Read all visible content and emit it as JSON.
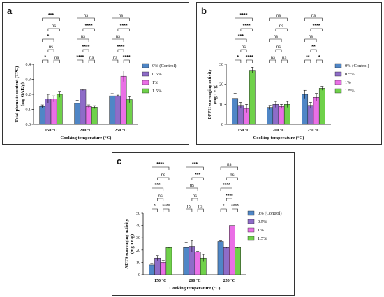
{
  "legend": [
    {
      "label": "0% (Control)",
      "color": "#4f86c6"
    },
    {
      "label": "0.5%",
      "color": "#8e6cc8"
    },
    {
      "label": "1%",
      "color": "#ea6fe6"
    },
    {
      "label": "1.5%",
      "color": "#6fd14a"
    }
  ],
  "chart_data": [
    {
      "panel": "a",
      "type": "bar",
      "categories": [
        "150 °C",
        "200 °C",
        "250 °C"
      ],
      "series": [
        {
          "name": "0% (Control)",
          "values": [
            0.12,
            0.14,
            0.19
          ],
          "errors": [
            0.01,
            0.02,
            0.015
          ]
        },
        {
          "name": "0.5%",
          "values": [
            0.17,
            0.23,
            0.19
          ],
          "errors": [
            0.03,
            0.005,
            0.005
          ]
        },
        {
          "name": "1%",
          "values": [
            0.17,
            0.12,
            0.32
          ],
          "errors": [
            0.02,
            0.01,
            0.035
          ]
        },
        {
          "name": "1.5%",
          "values": [
            0.2,
            0.115,
            0.165
          ],
          "errors": [
            0.02,
            0.01,
            0.02
          ]
        }
      ],
      "ylabel": "Total phenolic content (TPC)\n(mg GAE/g)",
      "xlabel": "Cooking temperature (°C)",
      "ylim": [
        0,
        0.4
      ],
      "yticks": [
        "0.0",
        "0.1",
        "0.2",
        "0.3",
        "0.4"
      ],
      "significance": [
        [
          [
            "*",
            "ns"
          ],
          [
            "ns"
          ],
          [
            "*"
          ],
          [
            "ns"
          ],
          [
            "***"
          ]
        ],
        [
          [
            "****",
            "ns"
          ],
          [
            "****"
          ],
          [
            "ns"
          ],
          [
            "****"
          ],
          [
            "ns"
          ]
        ],
        [
          [
            "ns",
            "****"
          ],
          [
            "****"
          ],
          [
            "ns"
          ],
          [
            "****"
          ],
          [
            "ns"
          ]
        ]
      ]
    },
    {
      "panel": "b",
      "type": "bar",
      "categories": [
        "150 °C",
        "200 °C",
        "250 °C"
      ],
      "series": [
        {
          "name": "0% (Control)",
          "values": [
            13.0,
            8.5,
            15.0
          ],
          "errors": [
            2.5,
            1.0,
            2.0
          ]
        },
        {
          "name": "0.5%",
          "values": [
            9.5,
            10.0,
            9.5
          ],
          "errors": [
            1.5,
            1.5,
            1.5
          ]
        },
        {
          "name": "1%",
          "values": [
            8.0,
            9.0,
            13.5
          ],
          "errors": [
            2.0,
            1.0,
            2.0
          ]
        },
        {
          "name": "1.5%",
          "values": [
            27.0,
            10.0,
            18.0
          ],
          "errors": [
            1.5,
            1.5,
            1.0
          ]
        }
      ],
      "ylabel": "DPPH scavenging activity\n(mg TE/g)",
      "xlabel": "Cooking temperature (°C)",
      "ylim": [
        0,
        30
      ],
      "yticks": [
        "0",
        "10",
        "20",
        "30"
      ],
      "significance": [
        [
          [
            "*",
            "****"
          ],
          [
            "ns"
          ],
          [
            "***"
          ],
          [
            "****"
          ],
          [
            "****"
          ]
        ],
        [
          [
            "ns",
            "ns"
          ],
          [
            "ns"
          ],
          [
            "ns"
          ],
          [
            "ns"
          ],
          [
            "ns"
          ]
        ],
        [
          [
            "**",
            "*"
          ],
          [
            "**"
          ],
          [
            "ns"
          ],
          [
            "****"
          ],
          [
            "ns"
          ]
        ]
      ]
    },
    {
      "panel": "c",
      "type": "bar",
      "categories": [
        "150 °C",
        "200 °C",
        "250 °C"
      ],
      "series": [
        {
          "name": "0% (Control)",
          "values": [
            8.0,
            22.0,
            27.0
          ],
          "errors": [
            1.0,
            4.0,
            0.5
          ]
        },
        {
          "name": "0.5%",
          "values": [
            13.5,
            23.0,
            22.0
          ],
          "errors": [
            2.0,
            4.5,
            0.5
          ]
        },
        {
          "name": "1%",
          "values": [
            10.0,
            18.5,
            40.0
          ],
          "errors": [
            1.5,
            0.5,
            3.0
          ]
        },
        {
          "name": "1.5%",
          "values": [
            22.0,
            13.5,
            22.0
          ],
          "errors": [
            0.5,
            3.0,
            0.5
          ]
        }
      ],
      "ylabel": "ABTS scavenging activity\n(mg TE/g)",
      "xlabel": "Cooking temperature (°C)",
      "ylim": [
        0,
        50
      ],
      "yticks": [
        "0",
        "10",
        "20",
        "30",
        "40",
        "50"
      ],
      "significance": [
        [
          [
            "*",
            "****"
          ],
          [
            "ns"
          ],
          [
            "***"
          ],
          [
            "ns"
          ],
          [
            "****"
          ]
        ],
        [
          [
            "ns",
            "ns"
          ],
          [
            "ns"
          ],
          [
            "ns"
          ],
          [
            "***"
          ],
          [
            "***"
          ]
        ],
        [
          [
            "*",
            "****"
          ],
          [
            "****"
          ],
          [
            "****"
          ],
          [
            "ns"
          ],
          [
            "ns"
          ]
        ]
      ]
    }
  ]
}
